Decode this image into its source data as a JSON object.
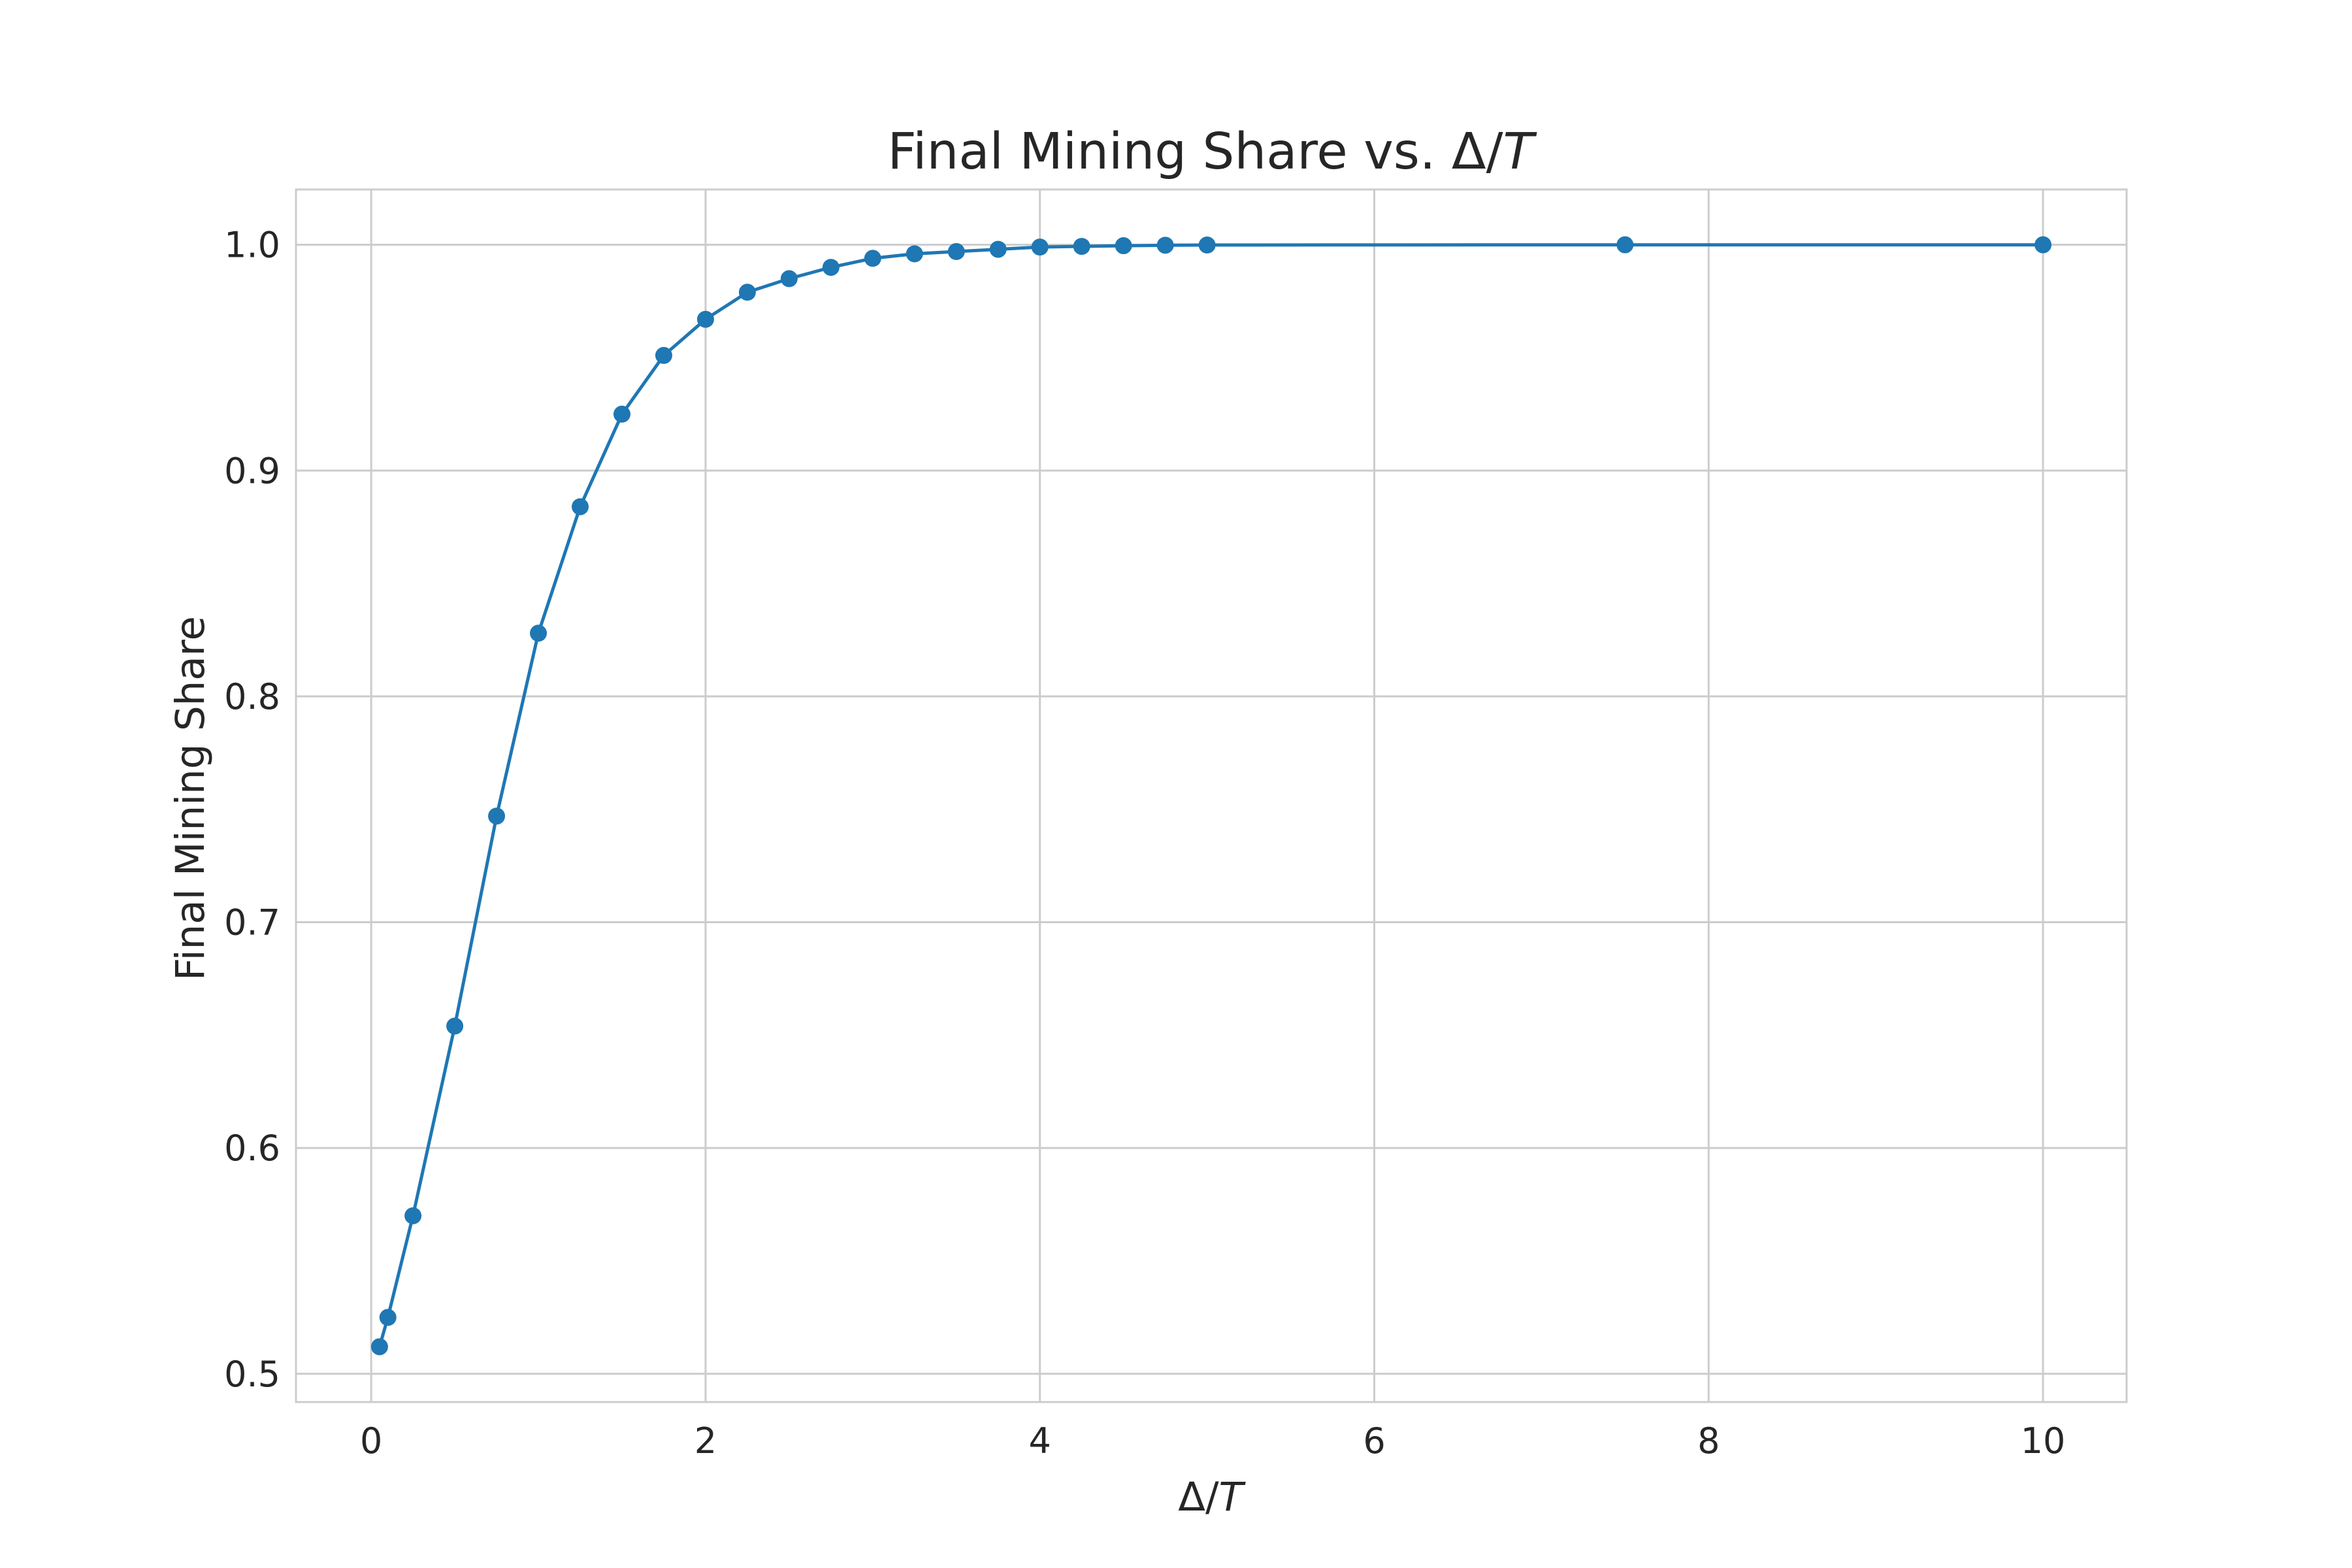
{
  "chart_data": {
    "type": "line",
    "title_text": "Final Mining Share vs. ",
    "title_delta": "Δ",
    "title_slash": "/",
    "title_t": "T",
    "xlabel_delta": "Δ",
    "xlabel_slash": "/",
    "xlabel_t": "T",
    "ylabel": "Final Mining Share",
    "xlim": [
      -0.45,
      10.5
    ],
    "ylim": [
      0.4875,
      1.0245
    ],
    "xticks": [
      0,
      2,
      4,
      6,
      8,
      10
    ],
    "xtick_labels": [
      "0",
      "2",
      "4",
      "6",
      "8",
      "10"
    ],
    "yticks": [
      0.5,
      0.6,
      0.7,
      0.8,
      0.9,
      1.0
    ],
    "ytick_labels": [
      "0.5",
      "0.6",
      "0.7",
      "0.8",
      "0.9",
      "1.0"
    ],
    "grid": true,
    "marker": "circle",
    "color": "#1f77b4",
    "series": [
      {
        "x": [
          0.05,
          0.1,
          0.25,
          0.5,
          0.75,
          1.0,
          1.25,
          1.5,
          1.75,
          2.0,
          2.25,
          2.5,
          2.75,
          3.0,
          3.25,
          3.5,
          3.75,
          4.0,
          4.25,
          4.5,
          4.75,
          5.0,
          7.5,
          10.0
        ],
        "y": [
          0.512,
          0.525,
          0.57,
          0.654,
          0.747,
          0.828,
          0.884,
          0.925,
          0.951,
          0.967,
          0.979,
          0.985,
          0.99,
          0.994,
          0.996,
          0.997,
          0.998,
          0.999,
          0.9993,
          0.9996,
          0.9998,
          0.9999,
          1.0,
          1.0
        ]
      }
    ]
  }
}
